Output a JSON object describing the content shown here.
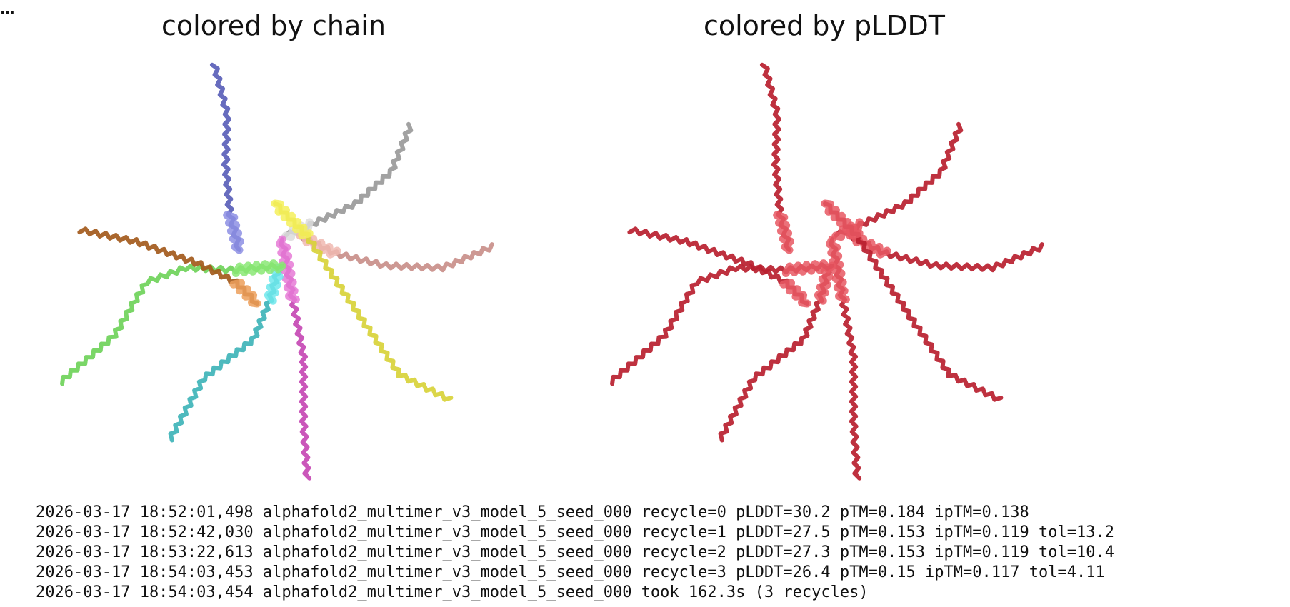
{
  "output_cell": {
    "collapse_marker": "...",
    "figure": {
      "left_panel": {
        "title": "colored by chain",
        "chains": [
          {
            "id": "A",
            "color": "#5a5fb8",
            "highlight": "#8d8fe4"
          },
          {
            "id": "B",
            "color": "#9a9a9a",
            "highlight": "#dcdcdc"
          },
          {
            "id": "C",
            "color": "#c98f8a",
            "highlight": "#f0b8b0"
          },
          {
            "id": "D",
            "color": "#d8d33a",
            "highlight": "#f4f05a"
          },
          {
            "id": "E",
            "color": "#c549b4",
            "highlight": "#e67ad6"
          },
          {
            "id": "F",
            "color": "#3fb4b8",
            "highlight": "#6fe8ec"
          },
          {
            "id": "G",
            "color": "#6fd35a",
            "highlight": "#8ae874"
          },
          {
            "id": "H",
            "color": "#a35a1c",
            "highlight": "#ec9f5a"
          }
        ]
      },
      "right_panel": {
        "title": "colored by pLDDT",
        "color_low": "#b81f2f",
        "color_high": "#e85863"
      }
    },
    "log_lines": [
      "2026-03-17 18:52:01,498 alphafold2_multimer_v3_model_5_seed_000 recycle=0 pLDDT=30.2 pTM=0.184 ipTM=0.138",
      "2026-03-17 18:52:42,030 alphafold2_multimer_v3_model_5_seed_000 recycle=1 pLDDT=27.5 pTM=0.153 ipTM=0.119 tol=13.2",
      "2026-03-17 18:53:22,613 alphafold2_multimer_v3_model_5_seed_000 recycle=2 pLDDT=27.3 pTM=0.153 ipTM=0.119 tol=10.4",
      "2026-03-17 18:54:03,453 alphafold2_multimer_v3_model_5_seed_000 recycle=3 pLDDT=26.4 pTM=0.15 ipTM=0.117 tol=4.11",
      "2026-03-17 18:54:03,454 alphafold2_multimer_v3_model_5_seed_000 took 162.3s (3 recycles)"
    ]
  }
}
